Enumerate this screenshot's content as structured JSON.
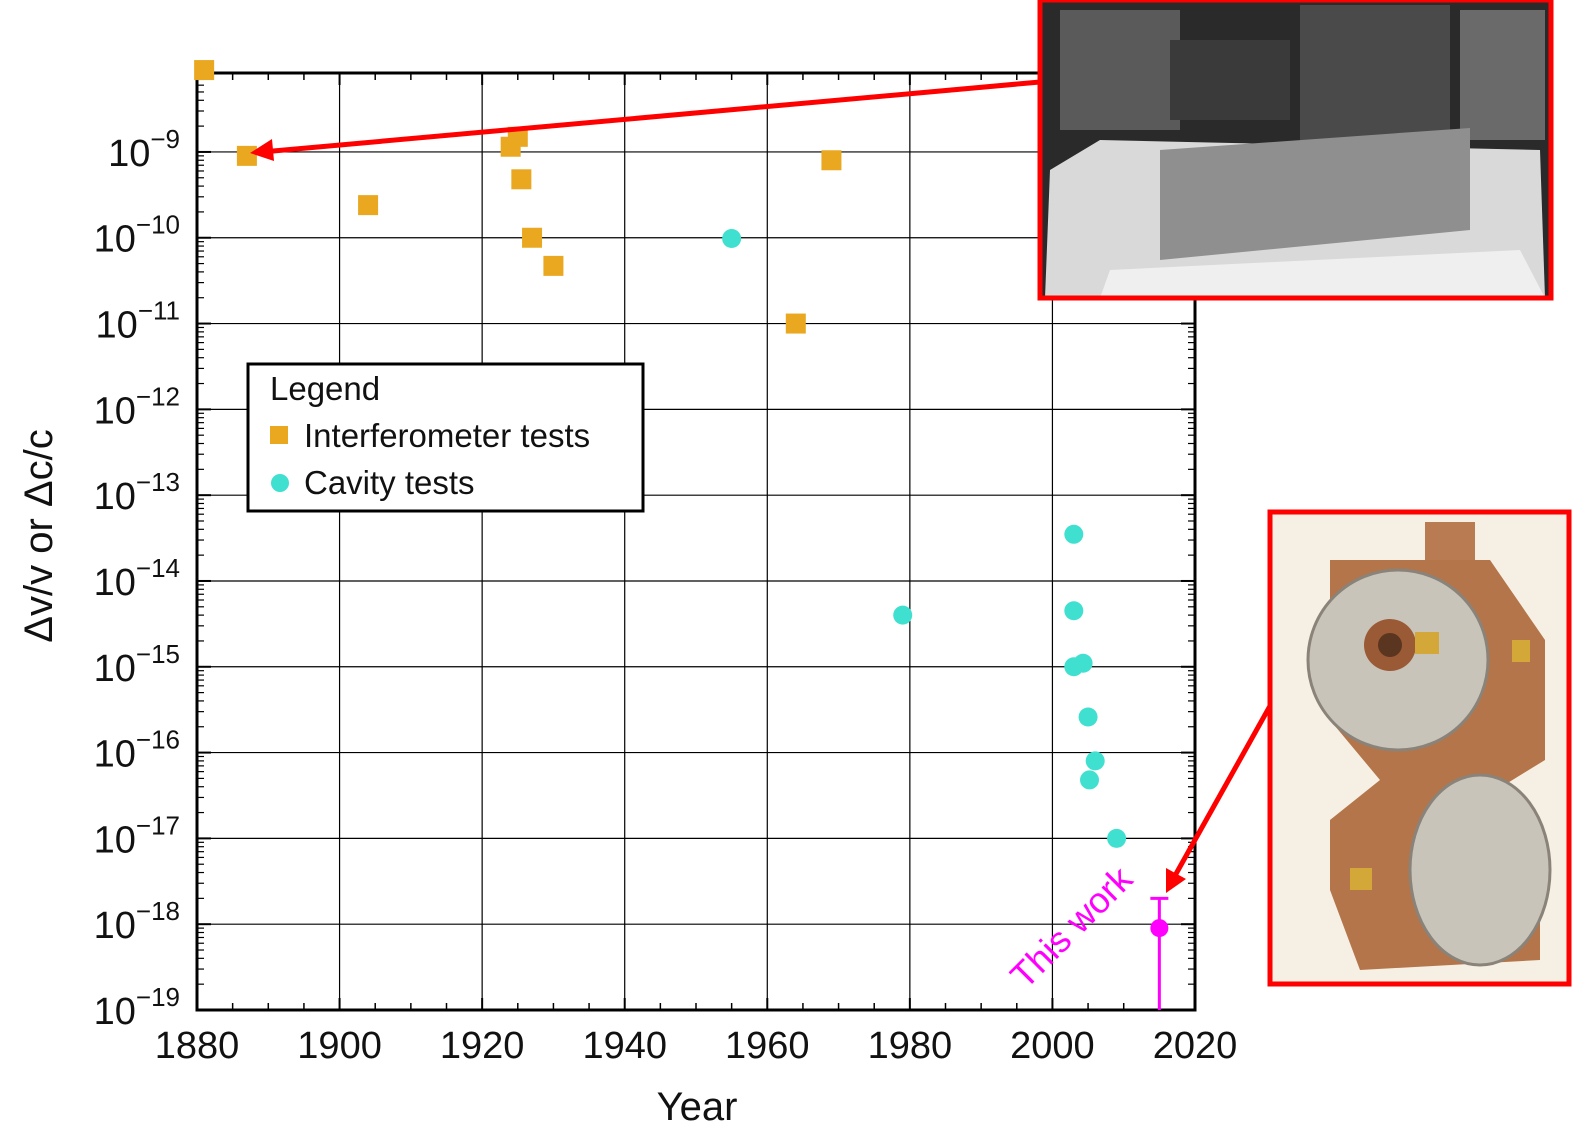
{
  "chart_data": {
    "type": "scatter",
    "xlabel": "Year",
    "ylabel": "Δv/v or Δc/c",
    "xlim": [
      1880,
      2020
    ],
    "ylim": [
      1e-19,
      1e-08
    ],
    "y_scale": "log",
    "x_ticks": [
      "1880",
      "1900",
      "1920",
      "1940",
      "1960",
      "1980",
      "2000",
      "2020"
    ],
    "y_ticks": [
      {
        "base": "10",
        "exp": "−19",
        "value": 1e-19
      },
      {
        "base": "10",
        "exp": "−18",
        "value": 1e-18
      },
      {
        "base": "10",
        "exp": "−17",
        "value": 1e-17
      },
      {
        "base": "10",
        "exp": "−16",
        "value": 1e-16
      },
      {
        "base": "10",
        "exp": "−15",
        "value": 1e-15
      },
      {
        "base": "10",
        "exp": "−14",
        "value": 1e-14
      },
      {
        "base": "10",
        "exp": "−13",
        "value": 1e-13
      },
      {
        "base": "10",
        "exp": "−12",
        "value": 1e-12
      },
      {
        "base": "10",
        "exp": "−11",
        "value": 1e-11
      },
      {
        "base": "10",
        "exp": "−10",
        "value": 1e-10
      },
      {
        "base": "10",
        "exp": "−9",
        "value": 1e-09
      }
    ],
    "grid": true,
    "legend": {
      "title": "Legend",
      "placement": "upper-left"
    },
    "series": [
      {
        "name": "Interferometer tests",
        "marker": "square",
        "color": "#E9A820",
        "points": [
          {
            "x": 1881,
            "y": 9e-09
          },
          {
            "x": 1887,
            "y": 9e-10
          },
          {
            "x": 1904,
            "y": 2.4e-10
          },
          {
            "x": 1924,
            "y": 1.15e-09
          },
          {
            "x": 1925,
            "y": 1.5e-09
          },
          {
            "x": 1925.5,
            "y": 4.8e-10
          },
          {
            "x": 1927,
            "y": 1e-10
          },
          {
            "x": 1930,
            "y": 4.7e-11
          },
          {
            "x": 1964,
            "y": 1e-11
          },
          {
            "x": 1969,
            "y": 8e-10
          }
        ]
      },
      {
        "name": "Cavity tests",
        "marker": "circle",
        "color": "#40E0D0",
        "points": [
          {
            "x": 1955,
            "y": 9.8e-11
          },
          {
            "x": 1979,
            "y": 4e-15
          },
          {
            "x": 2003,
            "y": 3.5e-14
          },
          {
            "x": 2003,
            "y": 4.5e-15
          },
          {
            "x": 2003,
            "y": 1e-15
          },
          {
            "x": 2004.3,
            "y": 1.1e-15
          },
          {
            "x": 2005,
            "y": 2.6e-16
          },
          {
            "x": 2006,
            "y": 8e-17
          },
          {
            "x": 2005.2,
            "y": 4.8e-17
          },
          {
            "x": 2009,
            "y": 1e-17
          }
        ]
      }
    ],
    "highlight": {
      "label": "This work",
      "color": "#FF00FF",
      "x": 2015,
      "y": 9e-19,
      "y_upper": 2e-18,
      "y_lower": 1e-19
    }
  },
  "insets": [
    {
      "name": "interferometer-photo",
      "border_color": "#FF0000"
    },
    {
      "name": "cavity-photo",
      "border_color": "#FF0000"
    }
  ]
}
